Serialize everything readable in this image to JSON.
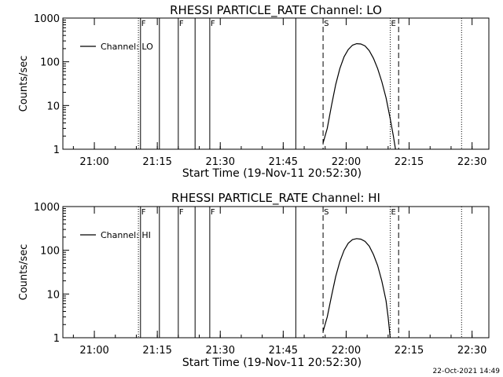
{
  "footer_timestamp": "22-Oct-2021 14:49",
  "chart_data": [
    {
      "type": "line",
      "title": "RHESSI PARTICLE_RATE Channel: LO",
      "xlabel": "Start Time (19-Nov-11 20:52:30)",
      "ylabel": "Counts/sec",
      "y_scale": "log",
      "ylim": [
        1,
        1000
      ],
      "xlim": [
        "20:52:30",
        "22:34:00"
      ],
      "x_ticks": [
        "21:00",
        "21:15",
        "21:30",
        "21:45",
        "22:00",
        "22:15",
        "22:30"
      ],
      "y_ticks": [
        "1",
        "10",
        "100",
        "1000"
      ],
      "legend": {
        "label": "Channel: LO",
        "position": "top-left"
      },
      "markers": [
        {
          "time": "21:10:30",
          "style": "dotted",
          "label": ""
        },
        {
          "time": "21:11:00",
          "style": "solid",
          "label": "F"
        },
        {
          "time": "21:15:30",
          "style": "solid",
          "label": ""
        },
        {
          "time": "21:20:00",
          "style": "solid",
          "label": "F"
        },
        {
          "time": "21:24:00",
          "style": "solid",
          "label": ""
        },
        {
          "time": "21:27:30",
          "style": "solid",
          "label": "F"
        },
        {
          "time": "21:48:00",
          "style": "solid",
          "label": ""
        },
        {
          "time": "21:54:30",
          "style": "dashed",
          "label": "S"
        },
        {
          "time": "22:10:30",
          "style": "dotted",
          "label": "E"
        },
        {
          "time": "22:12:30",
          "style": "dashed",
          "label": ""
        },
        {
          "time": "22:27:30",
          "style": "dotted",
          "label": ""
        }
      ],
      "series": [
        {
          "name": "Channel: LO",
          "points": [
            [
              "21:54:30",
              1.4
            ],
            [
              "21:55:30",
              3
            ],
            [
              "21:56:30",
              10
            ],
            [
              "21:57:30",
              30
            ],
            [
              "21:58:30",
              70
            ],
            [
              "21:59:30",
              130
            ],
            [
              "22:00:30",
              190
            ],
            [
              "22:01:30",
              240
            ],
            [
              "22:02:30",
              260
            ],
            [
              "22:03:30",
              255
            ],
            [
              "22:04:30",
              230
            ],
            [
              "22:05:30",
              180
            ],
            [
              "22:06:30",
              120
            ],
            [
              "22:07:30",
              70
            ],
            [
              "22:08:30",
              35
            ],
            [
              "22:09:30",
              15
            ],
            [
              "22:10:30",
              5
            ],
            [
              "22:11:15",
              2
            ],
            [
              "22:11:45",
              1
            ]
          ]
        }
      ]
    },
    {
      "type": "line",
      "title": "RHESSI PARTICLE_RATE Channel: HI",
      "xlabel": "Start Time (19-Nov-11 20:52:30)",
      "ylabel": "Counts/sec",
      "y_scale": "log",
      "ylim": [
        1,
        1000
      ],
      "xlim": [
        "20:52:30",
        "22:34:00"
      ],
      "x_ticks": [
        "21:00",
        "21:15",
        "21:30",
        "21:45",
        "22:00",
        "22:15",
        "22:30"
      ],
      "y_ticks": [
        "1",
        "10",
        "100",
        "1000"
      ],
      "legend": {
        "label": "Channel: HI",
        "position": "top-left"
      },
      "markers": [
        {
          "time": "21:10:30",
          "style": "dotted",
          "label": ""
        },
        {
          "time": "21:11:00",
          "style": "solid",
          "label": "F"
        },
        {
          "time": "21:15:30",
          "style": "solid",
          "label": ""
        },
        {
          "time": "21:20:00",
          "style": "solid",
          "label": "F"
        },
        {
          "time": "21:24:00",
          "style": "solid",
          "label": ""
        },
        {
          "time": "21:27:30",
          "style": "solid",
          "label": "F"
        },
        {
          "time": "21:48:00",
          "style": "solid",
          "label": ""
        },
        {
          "time": "21:54:30",
          "style": "dashed",
          "label": "S"
        },
        {
          "time": "22:10:30",
          "style": "dotted",
          "label": "E"
        },
        {
          "time": "22:12:30",
          "style": "dashed",
          "label": ""
        },
        {
          "time": "22:27:30",
          "style": "dotted",
          "label": ""
        }
      ],
      "series": [
        {
          "name": "Channel: HI",
          "points": [
            [
              "21:54:30",
              1.4
            ],
            [
              "21:55:30",
              3
            ],
            [
              "21:56:30",
              9
            ],
            [
              "21:57:30",
              25
            ],
            [
              "21:58:30",
              55
            ],
            [
              "21:59:30",
              100
            ],
            [
              "22:00:30",
              145
            ],
            [
              "22:01:30",
              175
            ],
            [
              "22:02:30",
              185
            ],
            [
              "22:03:30",
              180
            ],
            [
              "22:04:30",
              160
            ],
            [
              "22:05:30",
              125
            ],
            [
              "22:06:30",
              80
            ],
            [
              "22:07:30",
              45
            ],
            [
              "22:08:30",
              20
            ],
            [
              "22:09:30",
              7
            ],
            [
              "22:10:00",
              3
            ],
            [
              "22:10:30",
              1
            ]
          ]
        }
      ]
    }
  ]
}
